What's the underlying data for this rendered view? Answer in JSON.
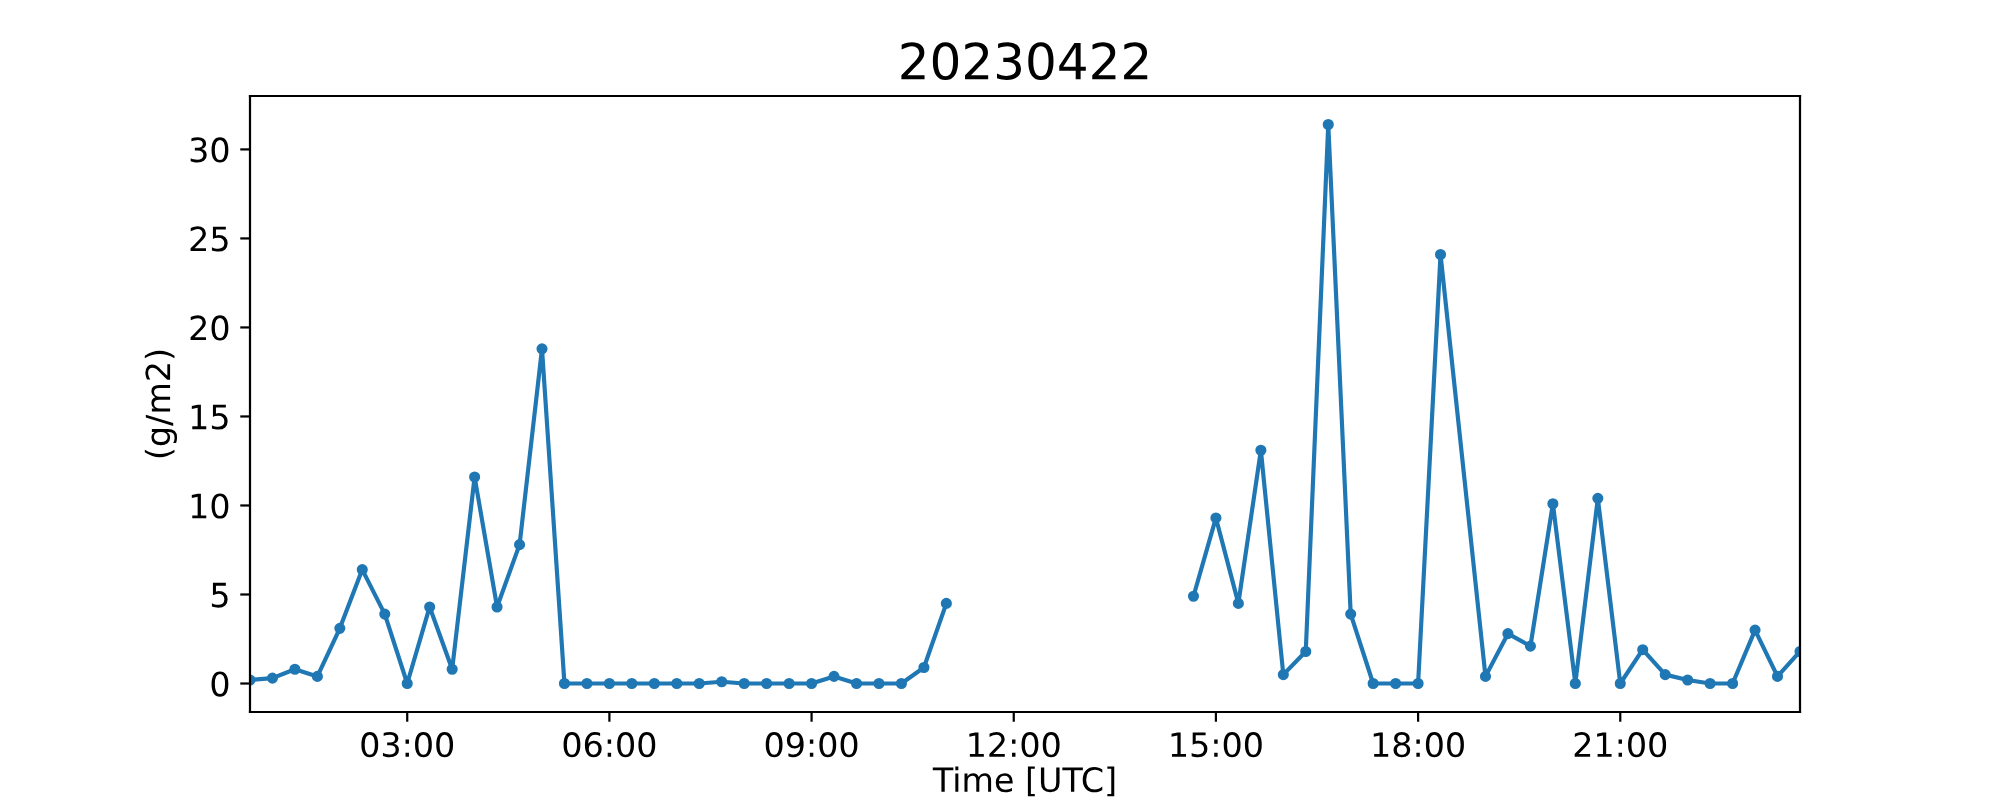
{
  "chart_data": {
    "type": "line",
    "title": "20230422",
    "xlabel": "Time [UTC]",
    "ylabel": "(g/m2)",
    "x": [
      0.667,
      1.0,
      1.333,
      1.667,
      2.0,
      2.333,
      2.667,
      3.0,
      3.333,
      3.667,
      4.0,
      4.333,
      4.667,
      5.0,
      5.333,
      5.667,
      6.0,
      6.333,
      6.667,
      7.0,
      7.333,
      7.667,
      8.0,
      8.333,
      8.667,
      9.0,
      9.333,
      9.667,
      10.0,
      10.333,
      10.667,
      11.0,
      11.333,
      14.667,
      15.0,
      15.333,
      15.667,
      16.0,
      16.333,
      16.667,
      17.0,
      17.333,
      17.667,
      18.0,
      18.333,
      19.0,
      19.333,
      19.667,
      20.0,
      20.333,
      20.667,
      21.0,
      21.333,
      21.667,
      22.0,
      22.333,
      22.667,
      23.0,
      23.333,
      23.667
    ],
    "series": [
      {
        "color": "#1f77b4",
        "values": [
          0.2,
          0.3,
          0.8,
          0.4,
          3.1,
          6.4,
          3.9,
          0,
          4.3,
          0.8,
          11.6,
          4.3,
          7.8,
          18.8,
          0,
          0,
          0,
          0,
          0,
          0,
          0,
          0.1,
          0,
          0,
          0,
          0,
          0.4,
          0,
          0,
          0,
          0.9,
          4.5,
          null,
          4.9,
          9.3,
          4.5,
          13.1,
          0.5,
          1.8,
          31.4,
          3.9,
          0,
          0,
          0,
          24.1,
          0.4,
          2.8,
          2.1,
          10.1,
          0,
          10.4,
          0,
          1.9,
          0.5,
          0.2,
          0,
          0,
          3.0,
          0.4,
          1.8
        ]
      }
    ],
    "xlim": [
      0.667,
      23.667
    ],
    "xticks": [
      {
        "value": 3,
        "label": "03:00"
      },
      {
        "value": 6,
        "label": "06:00"
      },
      {
        "value": 9,
        "label": "09:00"
      },
      {
        "value": 12,
        "label": "12:00"
      },
      {
        "value": 15,
        "label": "15:00"
      },
      {
        "value": 18,
        "label": "18:00"
      },
      {
        "value": 21,
        "label": "21:00"
      }
    ],
    "ylim": [
      -1.6,
      33
    ],
    "yticks": [
      0,
      5,
      10,
      15,
      20,
      25,
      30
    ],
    "marker": "circle",
    "line_style": "solid",
    "grid": false,
    "legend": false
  }
}
